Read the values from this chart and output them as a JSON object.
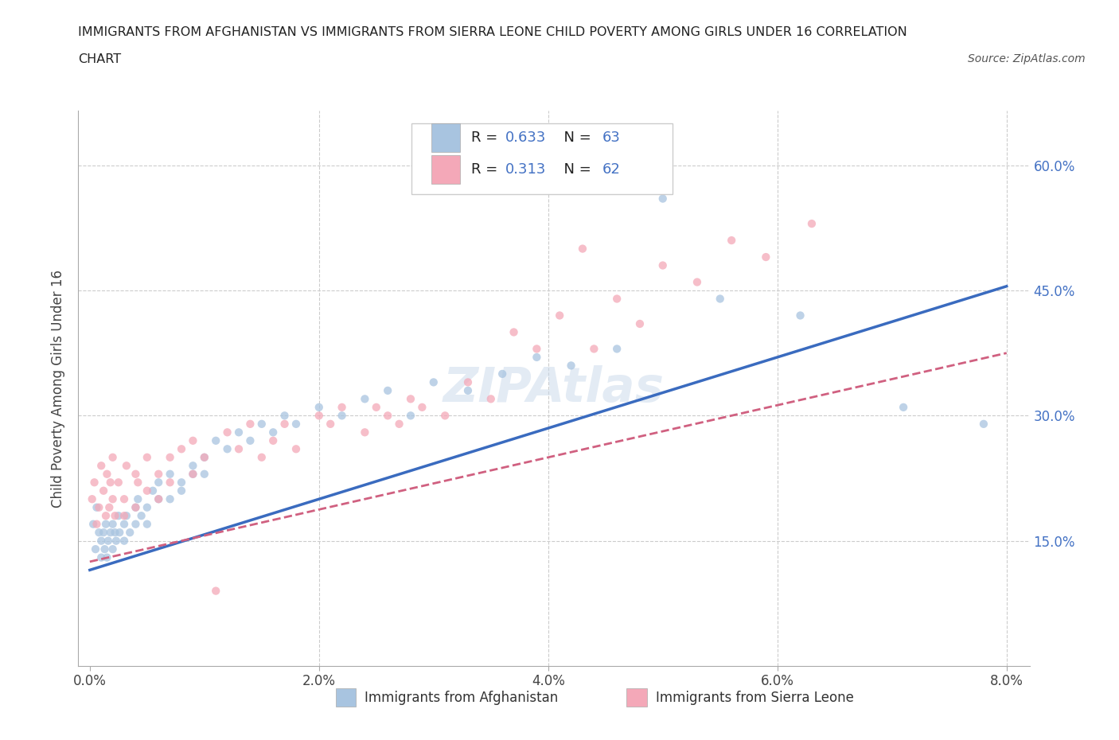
{
  "title_line1": "IMMIGRANTS FROM AFGHANISTAN VS IMMIGRANTS FROM SIERRA LEONE CHILD POVERTY AMONG GIRLS UNDER 16 CORRELATION",
  "title_line2": "CHART",
  "source_text": "Source: ZipAtlas.com",
  "ylabel": "Child Poverty Among Girls Under 16",
  "xlim": [
    0.0,
    0.08
  ],
  "ylim": [
    0.0,
    0.65
  ],
  "afghanistan_R": 0.633,
  "afghanistan_N": 63,
  "sierraleone_R": 0.313,
  "sierraleone_N": 62,
  "afghanistan_color": "#a8c4e0",
  "sierraleone_color": "#f4a8b8",
  "afghanistan_line_color": "#3a6bbf",
  "sierraleone_line_color": "#d06080",
  "blue_text_color": "#4472c4",
  "scatter_alpha": 0.75,
  "scatter_size": 55,
  "afg_x": [
    0.0003,
    0.0005,
    0.0006,
    0.0008,
    0.001,
    0.001,
    0.0012,
    0.0013,
    0.0014,
    0.0015,
    0.0016,
    0.0018,
    0.002,
    0.002,
    0.0022,
    0.0023,
    0.0025,
    0.0026,
    0.003,
    0.003,
    0.0032,
    0.0035,
    0.004,
    0.004,
    0.0042,
    0.0045,
    0.005,
    0.005,
    0.0055,
    0.006,
    0.006,
    0.007,
    0.007,
    0.008,
    0.008,
    0.009,
    0.009,
    0.01,
    0.01,
    0.011,
    0.012,
    0.013,
    0.014,
    0.015,
    0.016,
    0.017,
    0.018,
    0.02,
    0.022,
    0.024,
    0.026,
    0.028,
    0.03,
    0.033,
    0.036,
    0.039,
    0.042,
    0.046,
    0.05,
    0.055,
    0.062,
    0.071,
    0.078
  ],
  "afg_y": [
    0.17,
    0.14,
    0.19,
    0.16,
    0.15,
    0.13,
    0.16,
    0.14,
    0.17,
    0.13,
    0.15,
    0.16,
    0.14,
    0.17,
    0.16,
    0.15,
    0.18,
    0.16,
    0.17,
    0.15,
    0.18,
    0.16,
    0.19,
    0.17,
    0.2,
    0.18,
    0.19,
    0.17,
    0.21,
    0.2,
    0.22,
    0.2,
    0.23,
    0.21,
    0.22,
    0.24,
    0.23,
    0.25,
    0.23,
    0.27,
    0.26,
    0.28,
    0.27,
    0.29,
    0.28,
    0.3,
    0.29,
    0.31,
    0.3,
    0.32,
    0.33,
    0.3,
    0.34,
    0.33,
    0.35,
    0.37,
    0.36,
    0.38,
    0.56,
    0.44,
    0.42,
    0.31,
    0.29
  ],
  "sl_x": [
    0.0002,
    0.0004,
    0.0006,
    0.0008,
    0.001,
    0.0012,
    0.0014,
    0.0015,
    0.0017,
    0.0018,
    0.002,
    0.002,
    0.0022,
    0.0025,
    0.003,
    0.003,
    0.0032,
    0.004,
    0.004,
    0.0042,
    0.005,
    0.005,
    0.006,
    0.006,
    0.007,
    0.007,
    0.008,
    0.009,
    0.009,
    0.01,
    0.011,
    0.012,
    0.013,
    0.014,
    0.015,
    0.016,
    0.017,
    0.018,
    0.02,
    0.021,
    0.022,
    0.024,
    0.025,
    0.026,
    0.027,
    0.028,
    0.029,
    0.031,
    0.033,
    0.035,
    0.037,
    0.039,
    0.041,
    0.043,
    0.044,
    0.046,
    0.048,
    0.05,
    0.053,
    0.056,
    0.059,
    0.063
  ],
  "sl_y": [
    0.2,
    0.22,
    0.17,
    0.19,
    0.24,
    0.21,
    0.18,
    0.23,
    0.19,
    0.22,
    0.2,
    0.25,
    0.18,
    0.22,
    0.2,
    0.18,
    0.24,
    0.23,
    0.19,
    0.22,
    0.21,
    0.25,
    0.23,
    0.2,
    0.25,
    0.22,
    0.26,
    0.23,
    0.27,
    0.25,
    0.09,
    0.28,
    0.26,
    0.29,
    0.25,
    0.27,
    0.29,
    0.26,
    0.3,
    0.29,
    0.31,
    0.28,
    0.31,
    0.3,
    0.29,
    0.32,
    0.31,
    0.3,
    0.34,
    0.32,
    0.4,
    0.38,
    0.42,
    0.5,
    0.38,
    0.44,
    0.41,
    0.48,
    0.46,
    0.51,
    0.49,
    0.53
  ]
}
